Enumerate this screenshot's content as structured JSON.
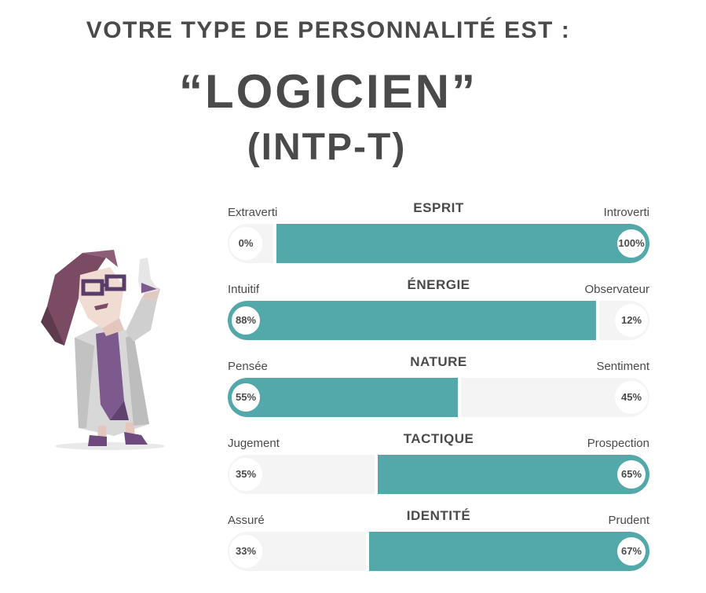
{
  "header": {
    "intro": "VOTRE TYPE DE PERSONNALITÉ EST :",
    "type_name": "“LOGICIEN”",
    "type_code": "(INTP-T)"
  },
  "colors": {
    "accent": "#53a8aa",
    "track": "#f4f4f4",
    "text": "#4a4a4a"
  },
  "scales": [
    {
      "title": "ESPRIT",
      "left_label": "Extraverti",
      "right_label": "Introverti",
      "left_pct": "0%",
      "right_pct": "100%",
      "left_value": 0,
      "right_value": 100,
      "dominant": "right"
    },
    {
      "title": "ÉNERGIE",
      "left_label": "Intuitif",
      "right_label": "Observateur",
      "left_pct": "88%",
      "right_pct": "12%",
      "left_value": 88,
      "right_value": 12,
      "dominant": "left"
    },
    {
      "title": "NATURE",
      "left_label": "Pensée",
      "right_label": "Sentiment",
      "left_pct": "55%",
      "right_pct": "45%",
      "left_value": 55,
      "right_value": 45,
      "dominant": "left"
    },
    {
      "title": "TACTIQUE",
      "left_label": "Jugement",
      "right_label": "Prospection",
      "left_pct": "35%",
      "right_pct": "65%",
      "left_value": 35,
      "right_value": 65,
      "dominant": "right"
    },
    {
      "title": "IDENTITÉ",
      "left_label": "Assuré",
      "right_label": "Prudent",
      "left_pct": "33%",
      "right_pct": "67%",
      "left_value": 33,
      "right_value": 67,
      "dominant": "right"
    }
  ]
}
